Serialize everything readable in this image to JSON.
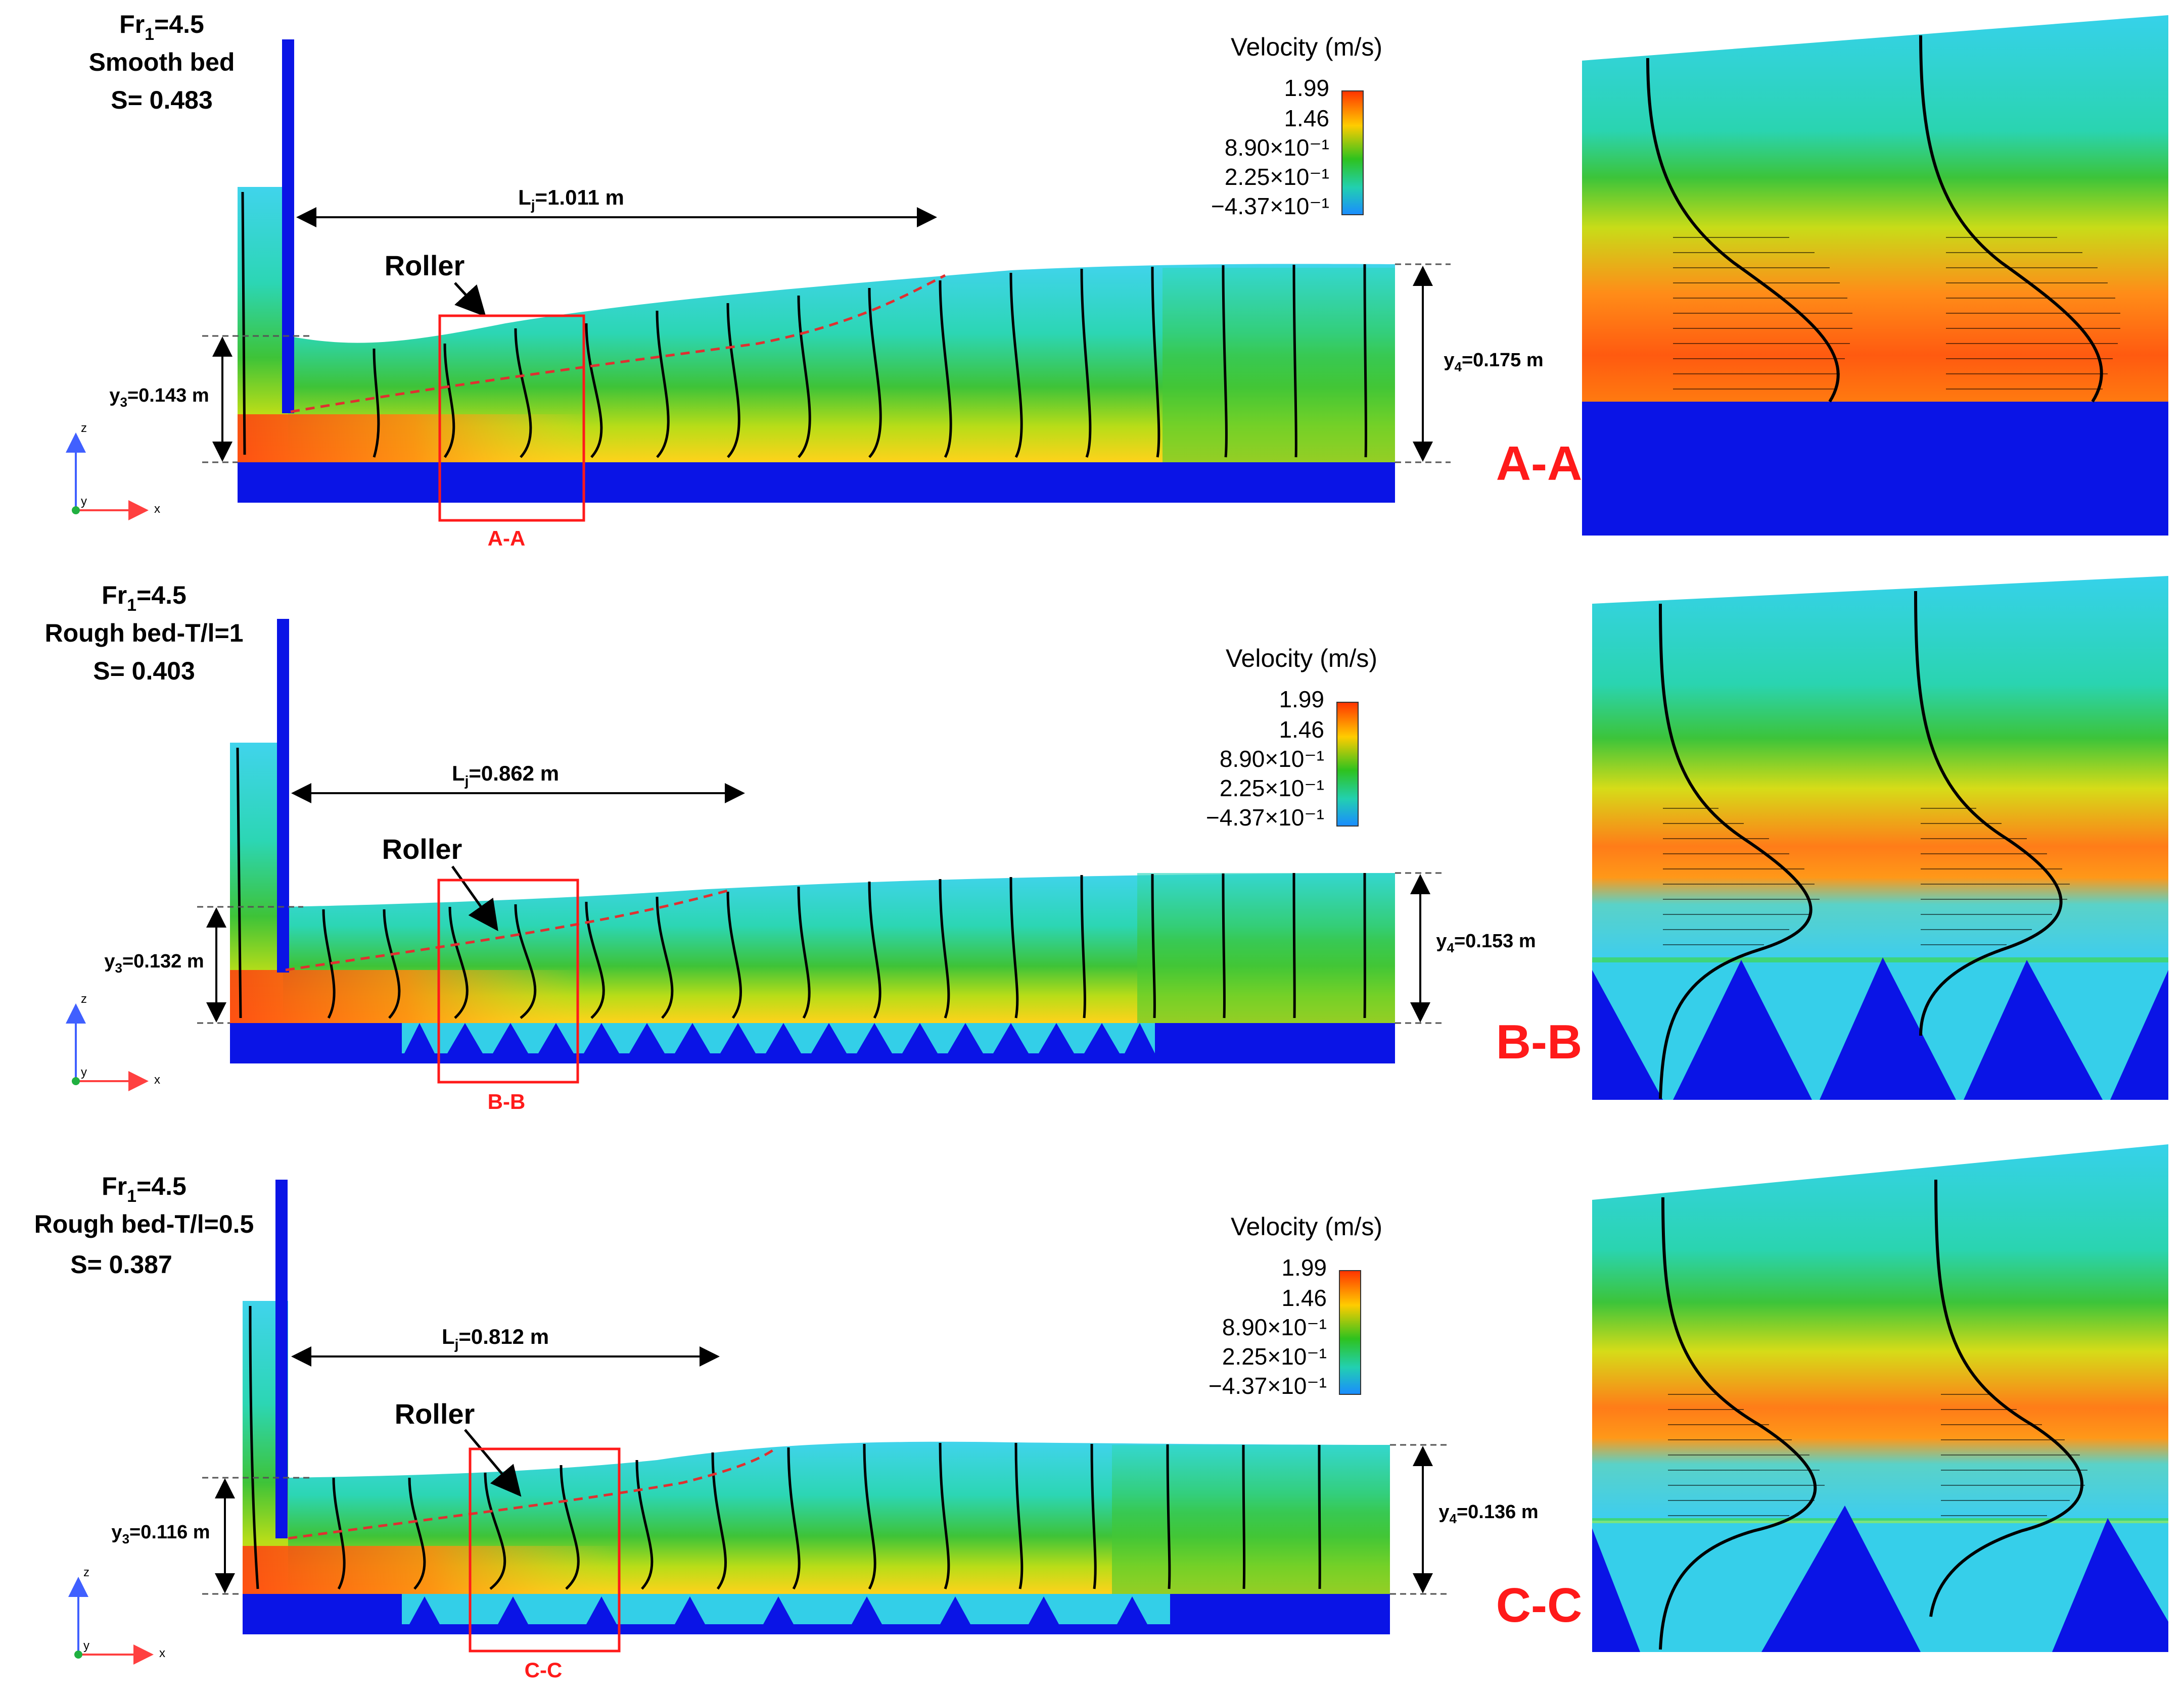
{
  "legend": {
    "title": "Velocity (m/s)",
    "ticks": [
      "1.99",
      "1.46",
      "8.90×10⁻¹",
      "2.25×10⁻¹",
      "−4.37×10⁻¹"
    ],
    "gradient": [
      "#ff3300",
      "#ffcc00",
      "#2ec21e",
      "#22d0b0",
      "#1a8cff"
    ]
  },
  "axes": {
    "z": "z",
    "y": "y",
    "x": "x"
  },
  "colors": {
    "solid": "#0a14e6",
    "water_top": "#3ad0e8",
    "jet": "#ff5a10",
    "green": "#3cc13a",
    "red_text": "#ff1a1a",
    "dashed_line": "#e03030"
  },
  "panels": [
    {
      "fr_label": "Fr",
      "fr_sub": "1",
      "fr_value": "=4.5",
      "bed": "Smooth bed",
      "s": "S= 0.483",
      "lj_label": "L",
      "lj_sub": "j",
      "lj_value": "=1.011 m",
      "roller": "Roller",
      "y3_label": "y",
      "y3_sub": "3",
      "y3_value": "=0.143 m",
      "y4_label": "y",
      "y4_sub": "4",
      "y4_value": "=0.175 m",
      "section_small": "A-A",
      "section_large": "A-A",
      "bed_type": "smooth"
    },
    {
      "fr_label": "Fr",
      "fr_sub": "1",
      "fr_value": "=4.5",
      "bed": "Rough bed-T/l=1",
      "s": "S= 0.403",
      "lj_label": "L",
      "lj_sub": "j",
      "lj_value": "=0.862 m",
      "roller": "Roller",
      "y3_label": "y",
      "y3_sub": "3",
      "y3_value": "=0.132 m",
      "y4_label": "y",
      "y4_sub": "4",
      "y4_value": "=0.153 m",
      "section_small": "B-B",
      "section_large": "B-B",
      "bed_type": "rough1"
    },
    {
      "fr_label": "Fr",
      "fr_sub": "1",
      "fr_value": "=4.5",
      "bed": "Rough bed-T/l=0.5",
      "s": "S= 0.387",
      "lj_label": "L",
      "lj_sub": "j",
      "lj_value": "=0.812 m",
      "roller": "Roller",
      "y3_label": "y",
      "y3_sub": "3",
      "y3_value": "=0.116 m",
      "y4_label": "y",
      "y4_sub": "4",
      "y4_value": "=0.136 m",
      "section_small": "C-C",
      "section_large": "C-C",
      "bed_type": "rough05"
    }
  ]
}
